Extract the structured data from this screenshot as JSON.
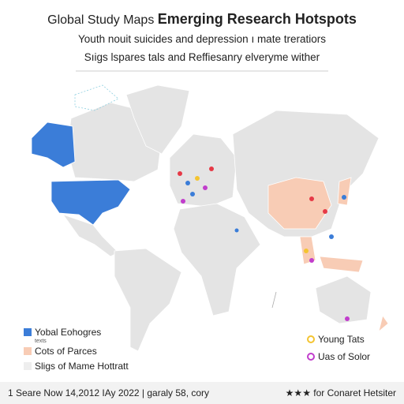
{
  "header": {
    "title_prefix": "Global Study Maps",
    "title_bold": "Emerging Research Hotspots",
    "subtitle_lines": [
      "Youth nouit suicides and depression ı mate treratiors",
      "Sıigs lspares tals and Reffiesanry elveryme wither"
    ]
  },
  "legend_left": [
    {
      "label": "Yobal Eohogres",
      "note": "texts"
    },
    {
      "label": "Cots of Parces"
    },
    {
      "label": "Sligs of Mame Hottratt"
    }
  ],
  "legend_right": [
    {
      "label": "Young Tats"
    },
    {
      "label": "Uas of Solor"
    }
  ],
  "footer": {
    "left": "1 Seare Now 14,2012 IAy 2022 | garaly 58, cory",
    "right": "★★★ for Conaret Hetsiter"
  }
}
